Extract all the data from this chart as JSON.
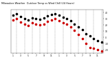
{
  "title": "Milwaukee Weather  Outdoor Temp vs Wind Chill (24 Hours)",
  "bg_color": "#ffffff",
  "grid_color": "#888888",
  "y_range": [
    -25,
    45
  ],
  "y_ticks": [
    -20,
    -10,
    0,
    10,
    20,
    30,
    40
  ],
  "outdoor_temp": [
    36,
    38,
    34,
    30,
    28,
    32,
    30,
    29,
    31,
    35,
    37,
    38,
    36,
    33,
    30,
    27,
    22,
    17,
    12,
    6,
    2,
    -2,
    -5,
    -8
  ],
  "wind_chill": [
    28,
    30,
    25,
    22,
    19,
    24,
    21,
    20,
    22,
    26,
    28,
    30,
    27,
    24,
    21,
    17,
    11,
    5,
    -2,
    -10,
    -16,
    -18,
    -20,
    -22
  ],
  "temp_color": "#000000",
  "wind_chill_color": "#cc0000",
  "legend_temp_color": "#ff0000",
  "legend_wc_color": "#0000ff",
  "dot_size": 2.5,
  "n_points": 24,
  "x_tick_labels": [
    "1",
    "",
    "3",
    "",
    "5",
    "",
    "7",
    "",
    "9",
    "",
    "11",
    "",
    "1",
    "",
    "3",
    "",
    "5",
    "",
    "7",
    "",
    "9",
    "",
    "11",
    ""
  ],
  "grid_positions": [
    1,
    3,
    5,
    7,
    9,
    11,
    13,
    15,
    17,
    19,
    21,
    23
  ]
}
